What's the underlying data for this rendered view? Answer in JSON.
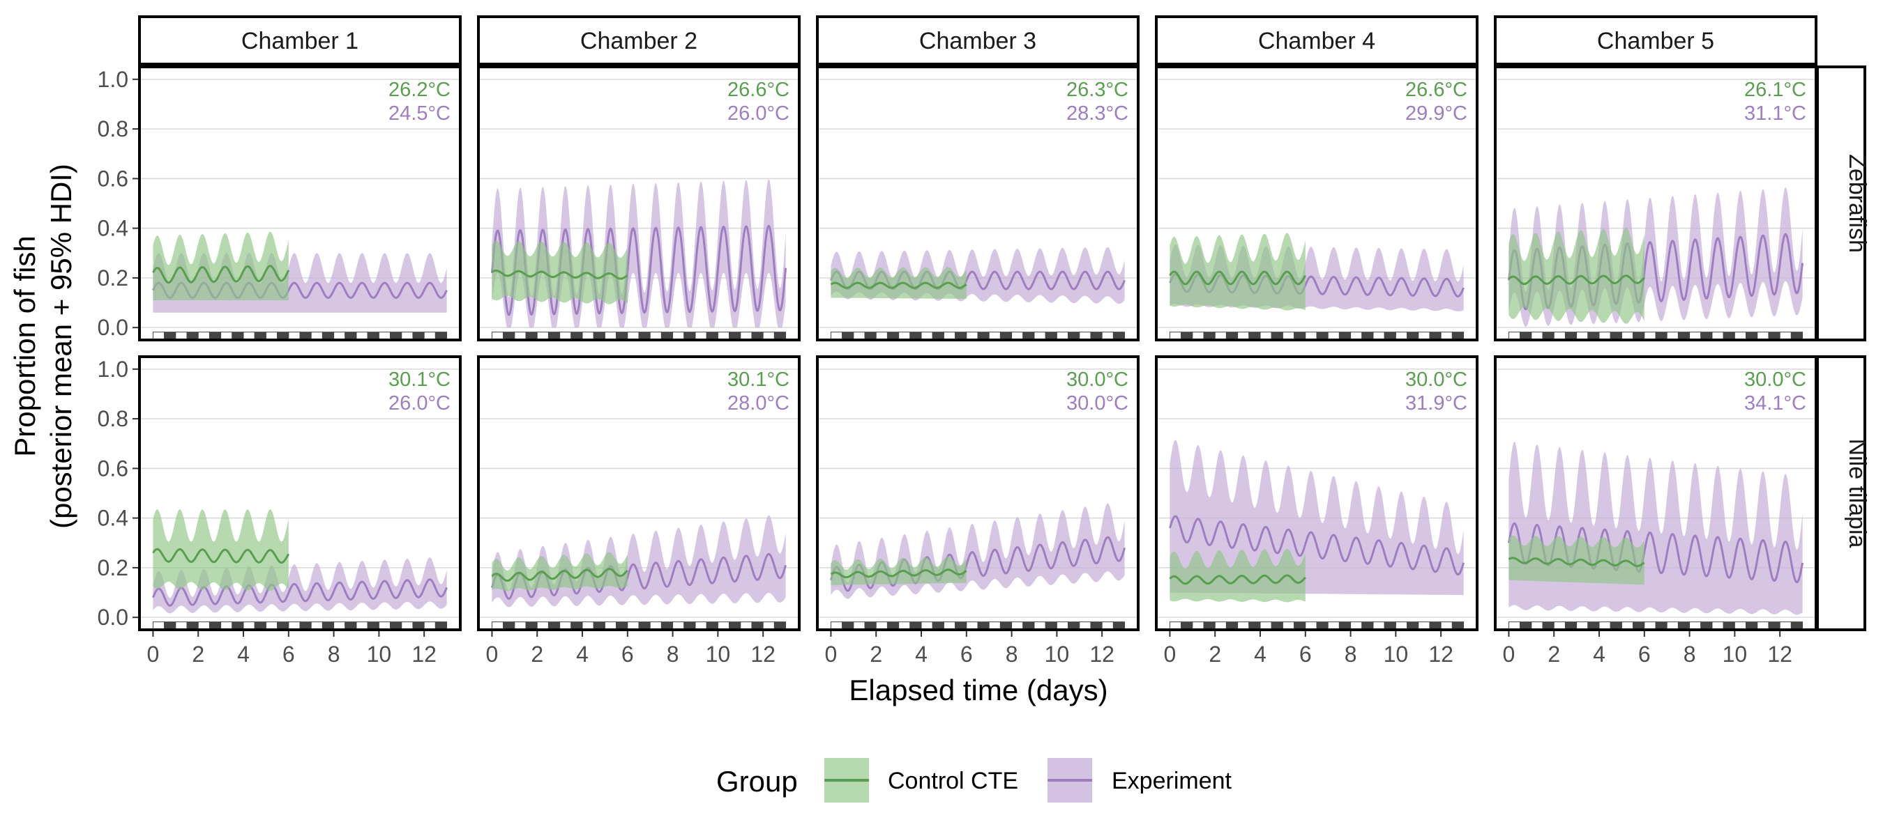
{
  "chart_data": {
    "type": "line",
    "xlabel": "Elapsed time (days)",
    "ylabel_line1": "Proportion of fish",
    "ylabel_line2": "(posterior mean + 95% HDI)",
    "xlim": [
      -0.6,
      13.6
    ],
    "ylim": [
      -0.05,
      1.05
    ],
    "x_ticks": [
      0,
      2,
      4,
      6,
      8,
      10,
      12
    ],
    "y_ticks": [
      0.0,
      0.2,
      0.4,
      0.6,
      0.8,
      1.0
    ],
    "y_tick_labels": [
      "0.0",
      "0.2",
      "0.4",
      "0.6",
      "0.8",
      "1.0"
    ],
    "x_tick_labels": [
      "0",
      "2",
      "4",
      "6",
      "8",
      "10",
      "12"
    ],
    "columns": [
      "Chamber 1",
      "Chamber 2",
      "Chamber 3",
      "Chamber 4",
      "Chamber 5"
    ],
    "rows": [
      "Zebrafish",
      "Nile tilapia"
    ],
    "colors": {
      "control": "#5a9e4f",
      "experiment": "#9e7ec0",
      "control_fill": "#8fc486",
      "experiment_fill": "#c4aed8"
    },
    "legend": {
      "title": "Group",
      "items": [
        {
          "label": "Control CTE",
          "key": "control"
        },
        {
          "label": "Experiment",
          "key": "experiment"
        }
      ]
    },
    "day_night_bar": {
      "days": 13,
      "y_level": -0.035
    },
    "panels": [
      {
        "row": 0,
        "col": 0,
        "control_temp": "26.2°C",
        "experiment_temp": "24.5°C",
        "control": {
          "end": 6,
          "mean0": 0.21,
          "mean1": 0.23,
          "amp": 0.03,
          "hw0": 0.1,
          "hw1": 0.12,
          "hamp": 0.03
        },
        "experiment": {
          "end": 13,
          "mean0": 0.15,
          "mean1": 0.15,
          "amp": 0.03,
          "hw0": 0.09,
          "hw1": 0.09,
          "hamp": 0.03
        }
      },
      {
        "row": 0,
        "col": 1,
        "control_temp": "26.6°C",
        "experiment_temp": "26.0°C",
        "control": {
          "end": 6,
          "mean0": 0.22,
          "mean1": 0.19,
          "amp": 0.01,
          "hw0": 0.1,
          "hw1": 0.11,
          "hamp": 0.02
        },
        "experiment": {
          "end": 13,
          "mean0": 0.22,
          "mean1": 0.24,
          "amp": 0.17,
          "hw0": 0.12,
          "hw1": 0.14,
          "hamp": 0.05
        }
      },
      {
        "row": 0,
        "col": 2,
        "control_temp": "26.3°C",
        "experiment_temp": "28.3°C",
        "control": {
          "end": 6,
          "mean0": 0.17,
          "mean1": 0.17,
          "amp": 0.01,
          "hw0": 0.05,
          "hw1": 0.06,
          "hamp": 0.01
        },
        "experiment": {
          "end": 13,
          "mean0": 0.19,
          "mean1": 0.19,
          "amp": 0.035,
          "hw0": 0.06,
          "hw1": 0.08,
          "hamp": 0.02
        }
      },
      {
        "row": 0,
        "col": 3,
        "control_temp": "26.6°C",
        "experiment_temp": "29.9°C",
        "control": {
          "end": 6,
          "mean0": 0.2,
          "mean1": 0.2,
          "amp": 0.025,
          "hw0": 0.11,
          "hw1": 0.15,
          "hamp": 0.03
        },
        "experiment": {
          "end": 13,
          "mean0": 0.18,
          "mean1": 0.16,
          "amp": 0.035,
          "hw0": 0.09,
          "hw1": 0.09,
          "hamp": 0.03
        }
      },
      {
        "row": 0,
        "col": 4,
        "control_temp": "26.1°C",
        "experiment_temp": "31.1°C",
        "control": {
          "end": 6,
          "mean0": 0.19,
          "mean1": 0.2,
          "amp": 0.015,
          "hw0": 0.13,
          "hw1": 0.19,
          "hamp": 0.04
        },
        "experiment": {
          "end": 13,
          "mean0": 0.19,
          "mean1": 0.26,
          "amp": 0.12,
          "hw0": 0.12,
          "hw1": 0.14,
          "hamp": 0.05
        }
      },
      {
        "row": 1,
        "col": 0,
        "control_temp": "30.1°C",
        "experiment_temp": "26.0°C",
        "control": {
          "end": 6,
          "mean0": 0.25,
          "mean1": 0.24,
          "amp": 0.025,
          "hw0": 0.12,
          "hw1": 0.13,
          "hamp": 0.04
        },
        "experiment": {
          "end": 13,
          "mean0": 0.08,
          "mean1": 0.12,
          "amp": 0.035,
          "hw0": 0.05,
          "hw1": 0.07,
          "hamp": 0.02
        }
      },
      {
        "row": 1,
        "col": 1,
        "control_temp": "30.1°C",
        "experiment_temp": "28.0°C",
        "control": {
          "end": 6,
          "mean0": 0.16,
          "mean1": 0.21,
          "amp": 0.015,
          "hw0": 0.05,
          "hw1": 0.07,
          "hamp": 0.01
        },
        "experiment": {
          "end": 13,
          "mean0": 0.12,
          "mean1": 0.21,
          "amp": 0.05,
          "hw0": 0.06,
          "hw1": 0.13,
          "hamp": 0.03
        }
      },
      {
        "row": 1,
        "col": 2,
        "control_temp": "30.0°C",
        "experiment_temp": "30.0°C",
        "control": {
          "end": 6,
          "mean0": 0.17,
          "mean1": 0.2,
          "amp": 0.01,
          "hw0": 0.04,
          "hw1": 0.05,
          "hamp": 0.01
        },
        "experiment": {
          "end": 13,
          "mean0": 0.15,
          "mean1": 0.28,
          "amp": 0.05,
          "hw0": 0.06,
          "hw1": 0.11,
          "hamp": 0.03
        }
      },
      {
        "row": 1,
        "col": 3,
        "control_temp": "30.0°C",
        "experiment_temp": "31.9°C",
        "control": {
          "end": 6,
          "mean0": 0.15,
          "mean1": 0.16,
          "amp": 0.015,
          "hw0": 0.08,
          "hw1": 0.1,
          "hamp": 0.02
        },
        "experiment": {
          "end": 13,
          "mean0": 0.36,
          "mean1": 0.22,
          "amp": 0.05,
          "hw0": 0.26,
          "hw1": 0.13,
          "hamp": 0.05
        }
      },
      {
        "row": 1,
        "col": 4,
        "control_temp": "30.0°C",
        "experiment_temp": "34.1°C",
        "control": {
          "end": 6,
          "mean0": 0.23,
          "mean1": 0.2,
          "amp": 0.01,
          "hw0": 0.08,
          "hw1": 0.09,
          "hamp": 0.01
        },
        "experiment": {
          "end": 13,
          "mean0": 0.3,
          "mean1": 0.22,
          "amp": 0.08,
          "hw0": 0.26,
          "hw1": 0.2,
          "hamp": 0.07
        }
      }
    ]
  }
}
